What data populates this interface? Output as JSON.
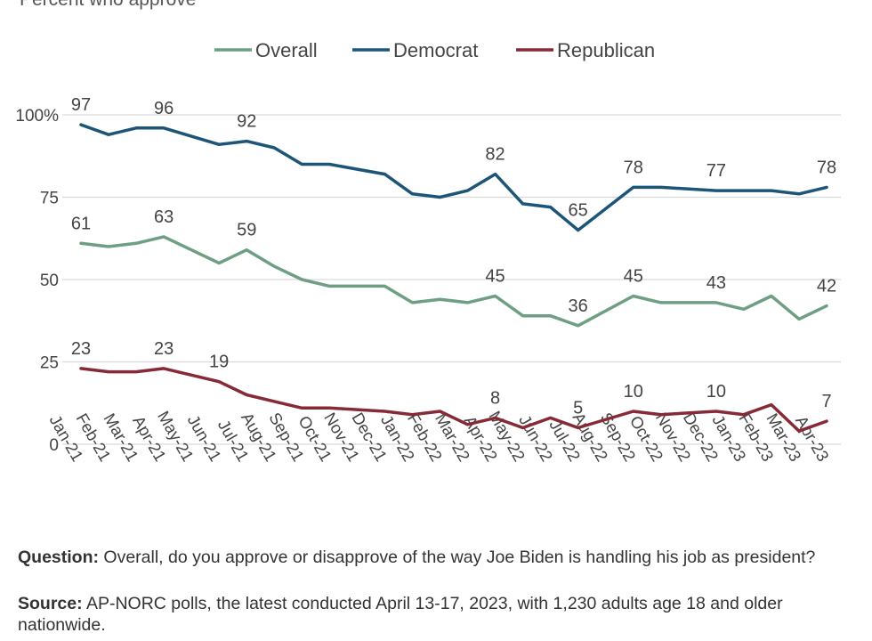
{
  "chart_data": {
    "type": "line",
    "subtitle": "Percent who approve",
    "x": [
      "Jan-21",
      "Feb-21",
      "Mar-21",
      "Apr-21",
      "May-21",
      "Jun-21",
      "Jul-21",
      "Aug-21",
      "Sep-21",
      "Oct-21",
      "Nov-21",
      "Dec-21",
      "Jan-22",
      "Feb-22",
      "Mar-22",
      "Apr-22",
      "May-22",
      "Jun-22",
      "Jul-22",
      "Aug-22",
      "Sep-22",
      "Oct-22",
      "Nov-22",
      "Dec-22",
      "Jan-23",
      "Feb-23",
      "Mar-23",
      "Apr-23"
    ],
    "ylim": [
      0,
      100
    ],
    "yticks": [
      0,
      25,
      50,
      75,
      100
    ],
    "ytick_labels": [
      "0",
      "25",
      "50",
      "75",
      "100%"
    ],
    "grid": true,
    "legend": "top",
    "series": [
      {
        "name": "Overall",
        "color": "#6e9f82",
        "values": [
          61,
          60,
          61,
          63,
          59,
          55,
          59,
          54,
          50,
          48,
          48,
          48,
          43,
          44,
          43,
          45,
          39,
          39,
          36,
          null,
          45,
          43,
          43,
          43,
          41,
          45,
          38,
          42
        ]
      },
      {
        "name": "Democrat",
        "color": "#1c5578",
        "values": [
          97,
          94,
          96,
          96,
          null,
          91,
          92,
          90,
          85,
          85,
          null,
          82,
          76,
          75,
          77,
          82,
          73,
          72,
          65,
          null,
          78,
          78,
          null,
          77,
          77,
          77,
          76,
          78
        ]
      },
      {
        "name": "Republican",
        "color": "#862a36",
        "values": [
          23,
          22,
          22,
          23,
          null,
          19,
          15,
          13,
          11,
          11,
          10.5,
          10,
          9,
          10,
          6,
          8,
          5,
          8,
          5,
          null,
          10,
          9,
          null,
          10,
          9,
          12,
          4,
          7
        ]
      }
    ],
    "data_labels": [
      {
        "series": 0,
        "x": "Jan-21",
        "text": "61"
      },
      {
        "series": 0,
        "x": "Apr-21",
        "text": "63"
      },
      {
        "series": 0,
        "x": "Jul-21",
        "text": "59"
      },
      {
        "series": 0,
        "x": "Apr-22",
        "text": "45"
      },
      {
        "series": 0,
        "x": "Jul-22",
        "text": "36"
      },
      {
        "series": 0,
        "x": "Sep-22",
        "text": "45"
      },
      {
        "series": 0,
        "x": "Dec-22",
        "text": "43"
      },
      {
        "series": 0,
        "x": "Apr-23",
        "text": "42"
      },
      {
        "series": 1,
        "x": "Jan-21",
        "text": "97"
      },
      {
        "series": 1,
        "x": "Apr-21",
        "text": "96"
      },
      {
        "series": 1,
        "x": "Jul-21",
        "text": "92"
      },
      {
        "series": 1,
        "x": "Apr-22",
        "text": "82"
      },
      {
        "series": 1,
        "x": "Jul-22",
        "text": "65"
      },
      {
        "series": 1,
        "x": "Sep-22",
        "text": "78"
      },
      {
        "series": 1,
        "x": "Dec-22",
        "text": "77"
      },
      {
        "series": 1,
        "x": "Apr-23",
        "text": "78"
      },
      {
        "series": 2,
        "x": "Jan-21",
        "text": "23"
      },
      {
        "series": 2,
        "x": "Apr-21",
        "text": "23"
      },
      {
        "series": 2,
        "x": "Jun-21",
        "text": "19"
      },
      {
        "series": 2,
        "x": "Apr-22",
        "text": "8"
      },
      {
        "series": 2,
        "x": "Jul-22",
        "text": "5"
      },
      {
        "series": 2,
        "x": "Sep-22",
        "text": "10"
      },
      {
        "series": 2,
        "x": "Dec-22",
        "text": "10"
      },
      {
        "series": 2,
        "x": "Apr-23",
        "text": "7"
      }
    ]
  },
  "notes": {
    "question_label": "Question:",
    "question_text": " Overall, do you approve or disapprove of the way Joe Biden is handling his job as president?",
    "source_label": "Source:",
    "source_text": " AP-NORC polls, the latest conducted April 13-17, 2023, with 1,230 adults age 18 and older nationwide."
  }
}
